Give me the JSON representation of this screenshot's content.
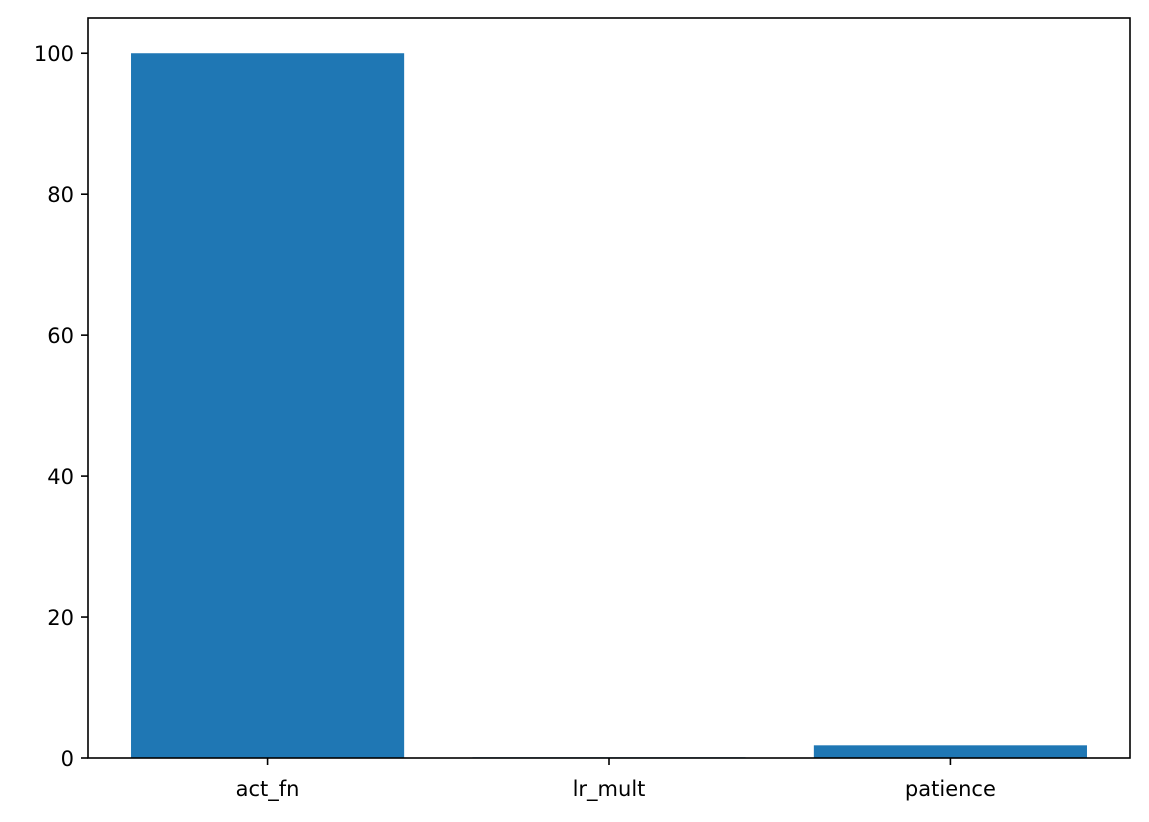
{
  "chart_data": {
    "type": "bar",
    "categories": [
      "act_fn",
      "lr_mult",
      "patience"
    ],
    "values": [
      100,
      0.1,
      1.8
    ],
    "ylim": [
      0,
      105
    ],
    "yticks": [
      0,
      20,
      40,
      60,
      80,
      100
    ],
    "bar_color": "#1f77b4",
    "grid": false,
    "title": "",
    "xlabel": "",
    "ylabel": ""
  }
}
